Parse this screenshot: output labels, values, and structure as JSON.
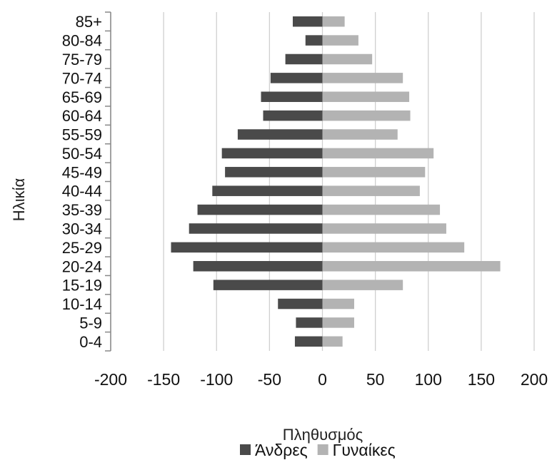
{
  "chart_data": {
    "type": "bar",
    "orientation": "horizontal",
    "xlabel": "Πληθυσμός",
    "ylabel": "Ηλικία",
    "xlim": [
      -200,
      200
    ],
    "xticks": [
      "-200",
      "-150",
      "-100",
      "-50",
      "0",
      "50",
      "100",
      "150",
      "200"
    ],
    "xtick_values": [
      -200,
      -150,
      -100,
      -50,
      0,
      50,
      100,
      150,
      200
    ],
    "categories": [
      "0-4",
      "5-9",
      "10-14",
      "15-19",
      "20-24",
      "25-29",
      "30-34",
      "35-39",
      "40-44",
      "45-49",
      "50-54",
      "55-59",
      "60-64",
      "65-69",
      "70-74",
      "75-79",
      "80-84",
      "85+"
    ],
    "series": [
      {
        "name": "Άνδρες",
        "color": "#4a4a4a",
        "values": [
          -26,
          -25,
          -42,
          -103,
          -122,
          -143,
          -126,
          -118,
          -104,
          -92,
          -95,
          -80,
          -56,
          -58,
          -49,
          -35,
          -16,
          -28
        ]
      },
      {
        "name": "Γυναίκες",
        "color": "#b3b3b3",
        "values": [
          19,
          30,
          30,
          76,
          168,
          134,
          117,
          111,
          92,
          97,
          105,
          71,
          83,
          82,
          76,
          47,
          34,
          21
        ]
      }
    ],
    "grid": "vertical",
    "legend": "bottom"
  }
}
